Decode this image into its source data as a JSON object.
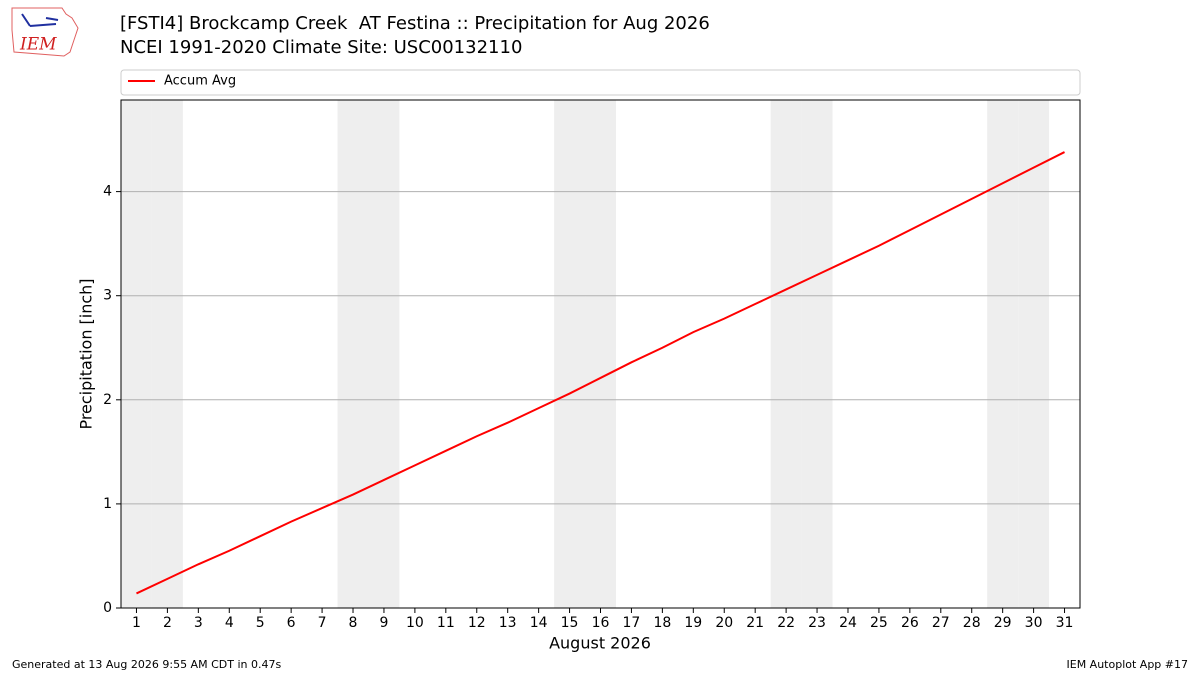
{
  "chart_data": {
    "type": "line",
    "title": "[FSTI4] Brockcamp Creek  AT Festina :: Precipitation for Aug 2026",
    "subtitle": "NCEI 1991-2020 Climate Site: USC00132110",
    "xlabel": "August 2026",
    "ylabel": "Precipitation [inch]",
    "x": [
      1,
      2,
      3,
      4,
      5,
      6,
      7,
      8,
      9,
      10,
      11,
      12,
      13,
      14,
      15,
      16,
      17,
      18,
      19,
      20,
      21,
      22,
      23,
      24,
      25,
      26,
      27,
      28,
      29,
      30,
      31
    ],
    "series": [
      {
        "name": "Accum Avg",
        "color": "#ff0000",
        "values": [
          0.14,
          0.28,
          0.42,
          0.55,
          0.69,
          0.83,
          0.96,
          1.09,
          1.23,
          1.37,
          1.51,
          1.65,
          1.78,
          1.92,
          2.06,
          2.21,
          2.36,
          2.5,
          2.65,
          2.78,
          2.92,
          3.06,
          3.2,
          3.34,
          3.48,
          3.63,
          3.78,
          3.93,
          4.08,
          4.23,
          4.38
        ]
      }
    ],
    "xlim": [
      0.5,
      31.5
    ],
    "xticks": [
      1,
      2,
      3,
      4,
      5,
      6,
      7,
      8,
      9,
      10,
      11,
      12,
      13,
      14,
      15,
      16,
      17,
      18,
      19,
      20,
      21,
      22,
      23,
      24,
      25,
      26,
      27,
      28,
      29,
      30,
      31
    ],
    "ylim": [
      0,
      4.88
    ],
    "yticks": [
      0,
      1,
      2,
      3,
      4
    ],
    "grid": true,
    "legend": "top"
  },
  "logo": {
    "text": "IEM"
  },
  "footer": {
    "left": "Generated at 13 Aug 2026 9:55 AM CDT in 0.47s",
    "right": "IEM Autoplot App #17"
  }
}
